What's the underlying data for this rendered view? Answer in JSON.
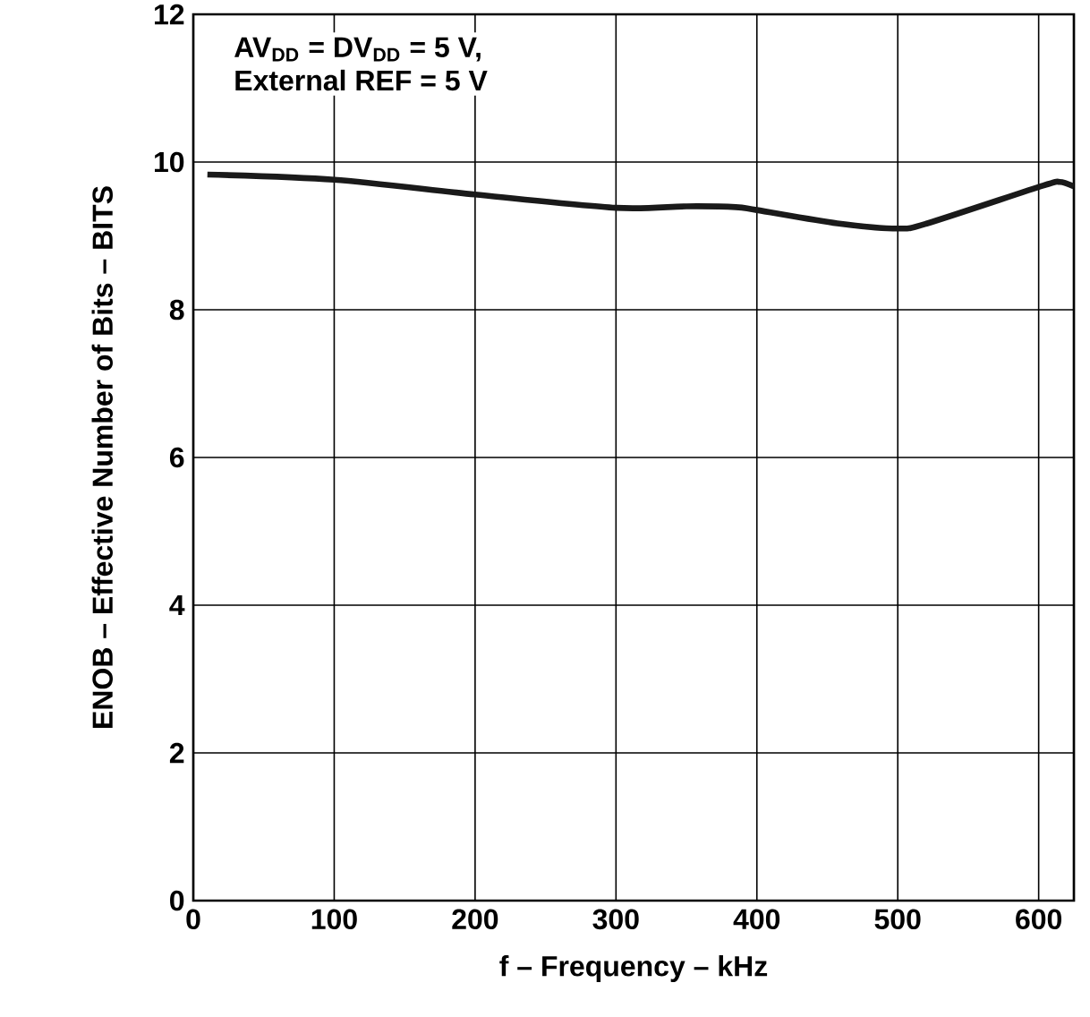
{
  "chart_data": {
    "type": "line",
    "xlabel": "f – Frequency – kHz",
    "ylabel": "ENOB – Effective Number of Bits – BITS",
    "annotations": [
      "AV$_{DD}$ = DV$_{DD}$ = 5 V,",
      "External REF = 5 V"
    ],
    "x": [
      10,
      100,
      200,
      300,
      350,
      385,
      400,
      457,
      500,
      521,
      603,
      615,
      625
    ],
    "series": [
      {
        "color": "#1a1a1a",
        "values": [
          9.83,
          9.76,
          9.56,
          9.38,
          9.4,
          9.39,
          9.35,
          9.17,
          9.1,
          9.17,
          9.68,
          9.73,
          9.67
        ]
      }
    ],
    "xlim": [
      0,
      625
    ],
    "xticks": [
      0,
      100,
      200,
      300,
      400,
      500,
      600
    ],
    "ylim": [
      0,
      12
    ],
    "yticks": [
      0,
      2,
      4,
      6,
      8,
      10,
      12
    ],
    "grid": true,
    "marker": "none",
    "line_style": "solid"
  }
}
